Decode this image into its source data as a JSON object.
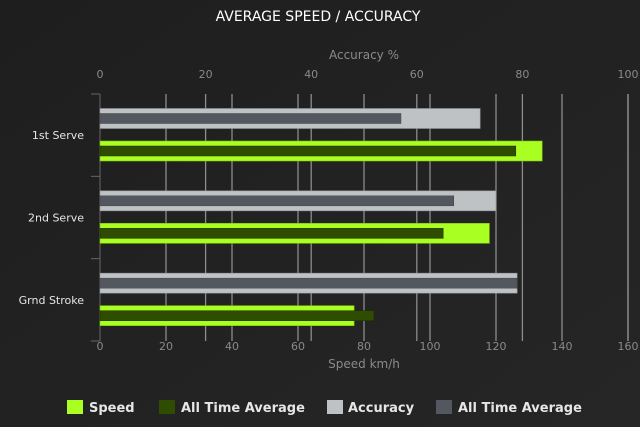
{
  "chart_data": {
    "type": "bar",
    "orientation": "horizontal",
    "title": "AVERAGE SPEED / ACCURACY",
    "categories": [
      "1st Serve",
      "2nd Serve",
      "Grnd Stroke"
    ],
    "x_bottom": {
      "label": "Speed km/h",
      "range": [
        0,
        160
      ],
      "ticks": [
        0,
        20,
        40,
        60,
        80,
        100,
        120,
        140,
        160
      ]
    },
    "x_top": {
      "label": "Accuracy %",
      "range": [
        0,
        100
      ],
      "ticks": [
        0,
        20,
        40,
        60,
        80,
        100
      ]
    },
    "grid": true,
    "legend_position": "bottom",
    "series": [
      {
        "name": "Speed",
        "axis": "bottom",
        "color": "#aaff22",
        "values": [
          134,
          118,
          77
        ]
      },
      {
        "name": "All Time Average",
        "axis": "bottom",
        "color": "#2f4d00",
        "values": [
          126,
          104,
          83
        ]
      },
      {
        "name": "Accuracy",
        "axis": "top",
        "color": "#bec2c5",
        "values": [
          72,
          75,
          79
        ]
      },
      {
        "name": "All Time Average",
        "axis": "top",
        "color": "#535860",
        "values": [
          57,
          67,
          79
        ]
      }
    ]
  }
}
